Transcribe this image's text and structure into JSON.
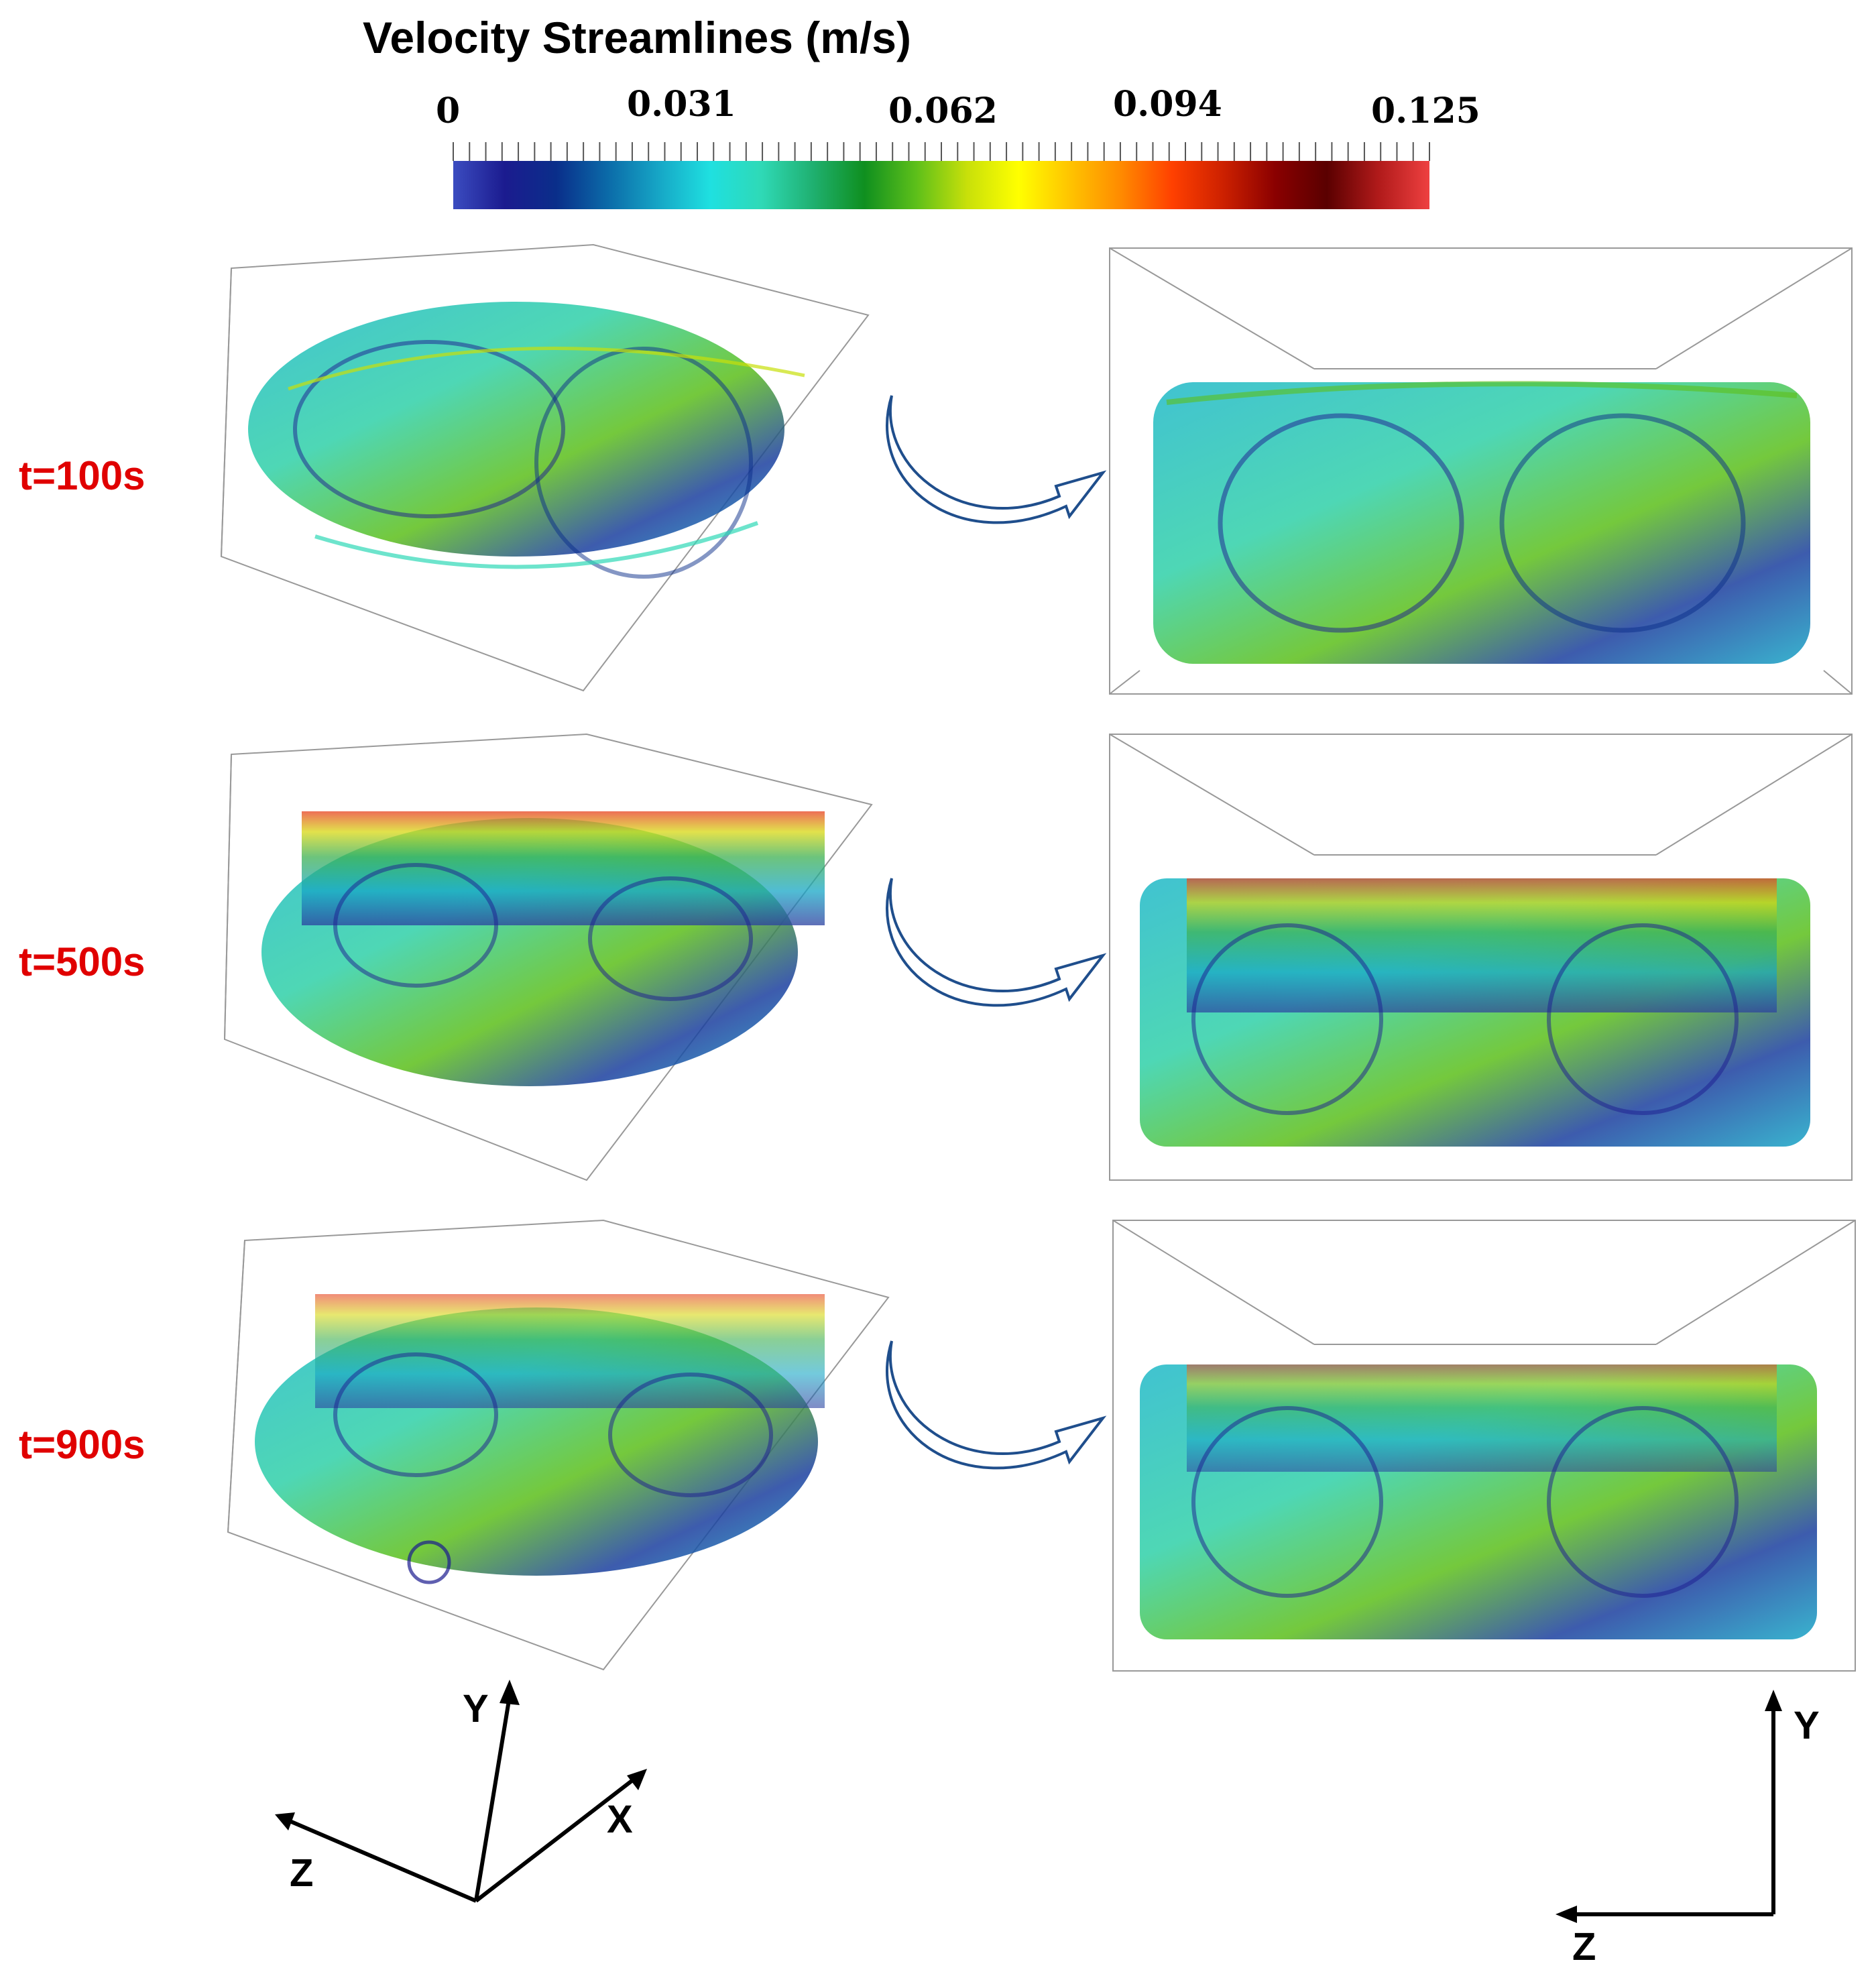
{
  "colorbar": {
    "title": "Velocity Streamlines (m/s)",
    "ticks": [
      "0",
      "0.031",
      "0.062",
      "0.094",
      "0.125"
    ],
    "colors": [
      "#3b4cc0",
      "#1b1b8f",
      "#0a2e8a",
      "#0b6aa8",
      "#16a6c6",
      "#1fe0e0",
      "#2fd9b6",
      "#1fb070",
      "#0f8f1f",
      "#5cbf1a",
      "#c8e00a",
      "#ffff00",
      "#ffc400",
      "#ff8a00",
      "#ff4000",
      "#cc2000",
      "#8a0000",
      "#5a0000",
      "#b01a1a",
      "#ee4040"
    ]
  },
  "rows": [
    {
      "time": "t=100s"
    },
    {
      "time": "t=500s"
    },
    {
      "time": "t=900s"
    }
  ],
  "axes_3d": {
    "y": "Y",
    "x": "X",
    "z": "Z"
  },
  "axes_2d": {
    "y": "Y",
    "z": "Z"
  }
}
